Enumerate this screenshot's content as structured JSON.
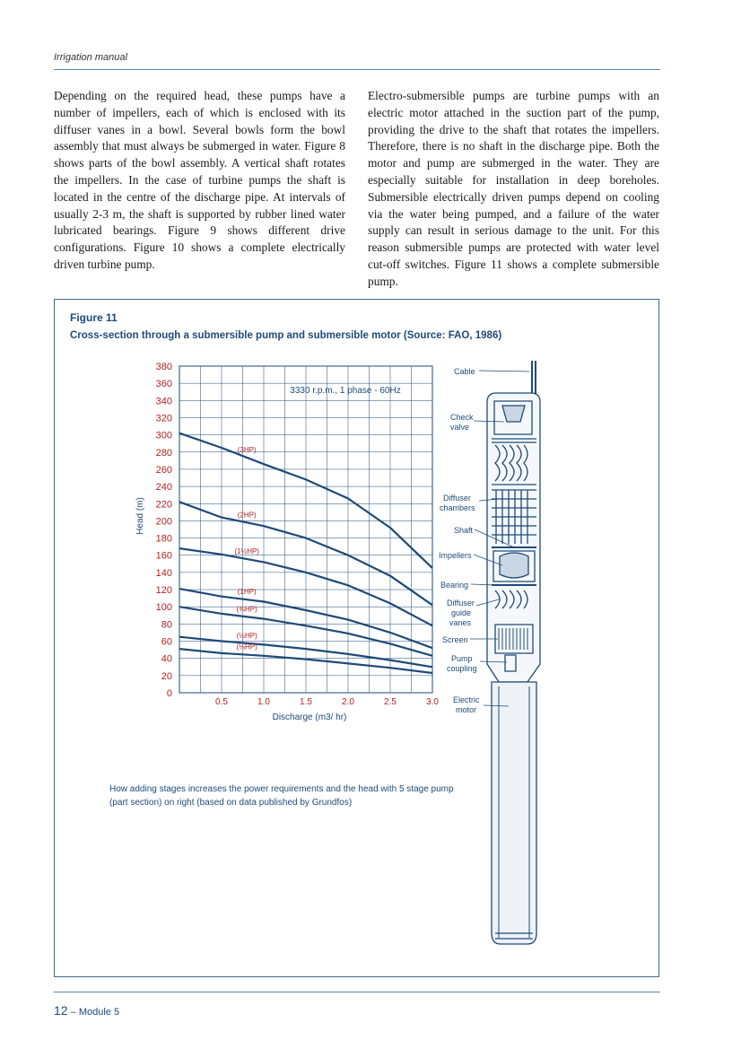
{
  "header": {
    "running_title": "Irrigation manual"
  },
  "body": {
    "left_paragraph": "Depending on the required head, these pumps have a number of impellers, each of which is enclosed with its diffuser vanes in a bowl. Several bowls form the bowl assembly that must always be submerged in water. Figure 8 shows parts of the bowl assembly. A vertical shaft rotates the impellers. In the case of turbine pumps the shaft is located in the centre of the discharge pipe. At intervals of usually 2-3 m, the shaft is supported by rubber lined water lubricated bearings. Figure 9 shows different drive configurations. Figure 10 shows a complete electrically driven turbine pump.",
    "right_paragraph": "Electro-submersible pumps are turbine pumps with an electric motor attached in the suction part of the pump, providing the drive to the shaft that rotates the impellers. Therefore, there is no shaft in the discharge pipe. Both the motor and pump are submerged in the water. They are especially suitable for installation in deep boreholes. Submersible electrically driven pumps depend on cooling via the water being pumped, and a failure of the water supply can result in serious damage to the unit. For this reason submersible pumps are protected with water level cut-off switches. Figure 11 shows a complete submersible pump."
  },
  "figure": {
    "label": "Figure 11",
    "title": "Cross-section through a submersible pump and submersible motor (Source: FAO, 1986)",
    "caption": "How adding stages increases the power requirements and the head with 5 stage pump (part section) on right (based on data published by Grundfos)",
    "pump_labels": {
      "cable": "Cable",
      "check_valve": "Check valve",
      "diffuser_chambers": "Diffuser chambers",
      "shaft": "Shaft",
      "impellers": "Impellers",
      "bearing": "Bearing",
      "diffuser_guide_vanes": "Diffuser guide vanes",
      "screen": "Screen",
      "pump_coupling": "Pump coupling",
      "electric_motor": "Electric motor"
    }
  },
  "chart_data": {
    "type": "line",
    "annotation": "3330 r.p.m., 1 phase - 60Hz",
    "xlabel": "Discharge (m3/ hr)",
    "ylabel": "Head (m)",
    "xlim": [
      0,
      3.0
    ],
    "ylim": [
      0,
      380
    ],
    "x_ticks": [
      "0.5",
      "1.0",
      "1.5",
      "2.0",
      "2.5",
      "3.0"
    ],
    "y_ticks": [
      "0",
      "20",
      "40",
      "60",
      "80",
      "100",
      "120",
      "140",
      "160",
      "180",
      "200",
      "220",
      "240",
      "260",
      "280",
      "300",
      "320",
      "340",
      "360",
      "380"
    ],
    "grid": true,
    "series": [
      {
        "name": "(3HP)",
        "x": [
          0,
          0.5,
          1.0,
          1.5,
          2.0,
          2.5,
          3.0
        ],
        "y": [
          302,
          285,
          266,
          248,
          226,
          192,
          145
        ]
      },
      {
        "name": "(2HP)",
        "x": [
          0,
          0.5,
          1.0,
          1.5,
          2.0,
          2.5,
          3.0
        ],
        "y": [
          222,
          204,
          194,
          180,
          160,
          136,
          102
        ]
      },
      {
        "name": "(1½HP)",
        "x": [
          0,
          0.5,
          1.0,
          1.5,
          2.0,
          2.5,
          3.0
        ],
        "y": [
          168,
          161,
          152,
          140,
          125,
          104,
          78
        ]
      },
      {
        "name": "(1HP)",
        "x": [
          0,
          0.5,
          1.0,
          1.5,
          2.0,
          2.5,
          3.0
        ],
        "y": [
          121,
          112,
          106,
          96,
          85,
          70,
          52
        ]
      },
      {
        "name": "(¾HP)",
        "x": [
          0,
          0.5,
          1.0,
          1.5,
          2.0,
          2.5,
          3.0
        ],
        "y": [
          100,
          92,
          86,
          78,
          69,
          57,
          43
        ]
      },
      {
        "name": "(½HP)",
        "x": [
          0,
          0.5,
          1.0,
          1.5,
          2.0,
          2.5,
          3.0
        ],
        "y": [
          65,
          60,
          56,
          51,
          45,
          38,
          30
        ]
      },
      {
        "name": "(⅓HP)",
        "x": [
          0,
          0.5,
          1.0,
          1.5,
          2.0,
          2.5,
          3.0
        ],
        "y": [
          51,
          46,
          43,
          39,
          34,
          29,
          23
        ]
      }
    ],
    "colors": {
      "curve": "#1e4a78",
      "series_label": "#b22222",
      "tick_label": "#b22222",
      "grid": "#1e4a78"
    }
  },
  "footer": {
    "page_number": "12",
    "module": "– Module 5"
  }
}
